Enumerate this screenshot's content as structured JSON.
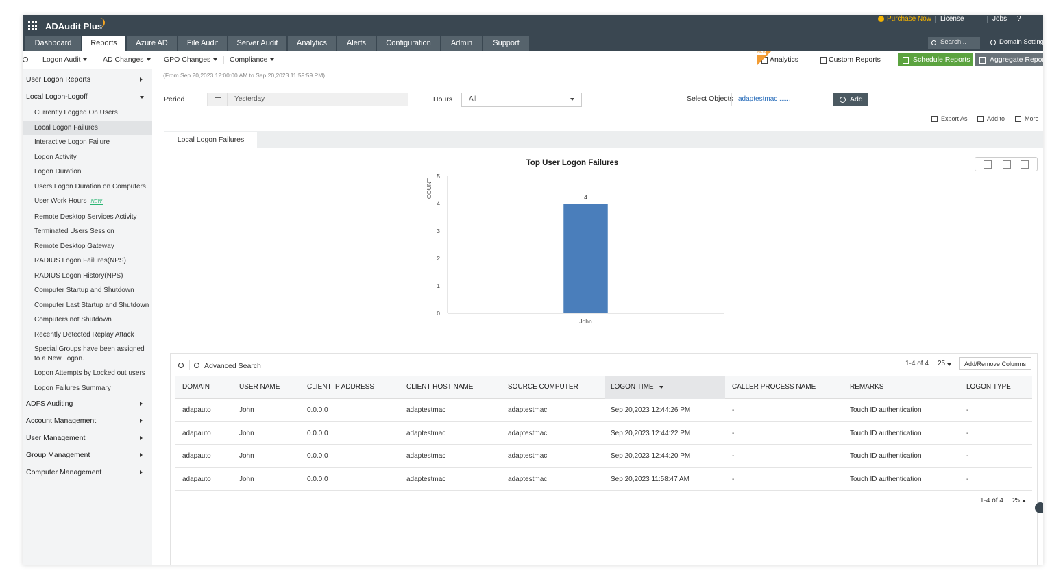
{
  "header": {
    "app_name": "ADAudit Plus",
    "links": [
      "Purchase Now",
      "License",
      "Jobs",
      "?"
    ],
    "search_placeholder": "Search...",
    "domain_settings": "Domain Settings"
  },
  "tabs": {
    "items": [
      "Dashboard",
      "Reports",
      "Azure AD",
      "File Audit",
      "Server Audit",
      "Analytics",
      "Alerts",
      "Configuration",
      "Admin",
      "Support"
    ],
    "active": 1
  },
  "subnav": {
    "menus": [
      "Logon Audit",
      "AD Changes",
      "GPO Changes",
      "Compliance"
    ],
    "new_badge": "NEW",
    "actions": [
      "Analytics",
      "Custom Reports",
      "Schedule Reports",
      "Aggregate Reports"
    ]
  },
  "sidebar": {
    "groups": [
      {
        "label": "User Logon Reports"
      },
      {
        "label": "Local Logon-Logoff",
        "selected": 1,
        "items": [
          "Currently Logged On Users",
          "Local Logon Failures",
          "Interactive Logon Failure",
          "Logon Activity",
          "Logon Duration",
          "Users Logon Duration on Computers",
          {
            "label": "User Work Hours",
            "badge": "NEW"
          },
          "Remote Desktop Services Activity",
          "Terminated Users Session",
          "Remote Desktop Gateway",
          "RADIUS Logon Failures(NPS)",
          "RADIUS Logon History(NPS)",
          "Computer Startup and Shutdown",
          "Computer Last Startup and Shutdown",
          "Computers not Shutdown",
          "Recently Detected Replay Attack",
          "Special Groups have been assigned to a New Logon.",
          "Logon Attempts by Locked out users",
          "Logon Failures Summary"
        ]
      },
      {
        "label": "ADFS Auditing"
      },
      {
        "label": "Account Management"
      },
      {
        "label": "User Management"
      },
      {
        "label": "Group Management"
      },
      {
        "label": "Computer Management"
      }
    ]
  },
  "report": {
    "date_range": "(From Sep 20,2023 12:00:00 AM to Sep 20,2023 11:59:59 PM)",
    "period_label": "Period",
    "period_value": "Yesterday",
    "hours_label": "Hours",
    "hours_value": "All",
    "objects_label": "Select Objects",
    "objects_value": "adaptestmac ......",
    "add_button": "Add",
    "actions": [
      "Export As",
      "Add to",
      "More"
    ],
    "tab": "Local Logon Failures"
  },
  "chart_data": {
    "type": "bar",
    "title": "Top User Logon Failures",
    "y_label": "COUNT",
    "categories": [
      "John"
    ],
    "values": [
      4
    ],
    "color": "#4a7ebb",
    "ylim": [
      0,
      5
    ],
    "yticks": [
      0,
      1,
      2,
      3,
      4,
      5
    ]
  },
  "table": {
    "search_label": "Advanced Search",
    "pagination": "1-4 of 4",
    "page_size": "25",
    "columns_button": "Add/Remove Columns",
    "columns": [
      "DOMAIN",
      "USER NAME",
      "CLIENT IP ADDRESS",
      "CLIENT HOST NAME",
      "SOURCE COMPUTER",
      "LOGON TIME",
      "CALLER PROCESS NAME",
      "REMARKS",
      "LOGON TYPE"
    ],
    "sorted_column": 5,
    "rows": [
      [
        "adapauto",
        "John",
        "0.0.0.0",
        "adaptestmac",
        "adaptestmac",
        "Sep 20,2023 12:44:26 PM",
        "-",
        "Touch ID authentication",
        "-"
      ],
      [
        "adapauto",
        "John",
        "0.0.0.0",
        "adaptestmac",
        "adaptestmac",
        "Sep 20,2023 12:44:22 PM",
        "-",
        "Touch ID authentication",
        "-"
      ],
      [
        "adapauto",
        "John",
        "0.0.0.0",
        "adaptestmac",
        "adaptestmac",
        "Sep 20,2023 12:44:20 PM",
        "-",
        "Touch ID authentication",
        "-"
      ],
      [
        "adapauto",
        "John",
        "0.0.0.0",
        "adaptestmac",
        "adaptestmac",
        "Sep 20,2023 11:58:47 AM",
        "-",
        "Touch ID authentication",
        "-"
      ]
    ]
  }
}
